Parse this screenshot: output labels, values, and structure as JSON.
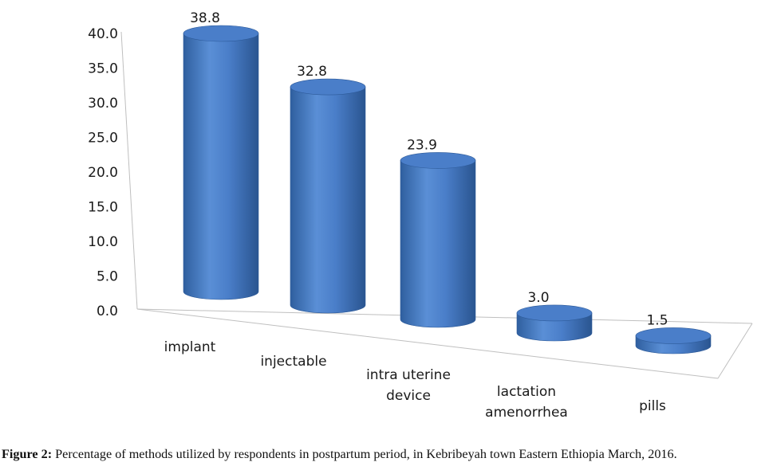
{
  "chart_data": {
    "type": "bar",
    "style": "3d-cylinder",
    "categories": [
      "implant",
      "injectable",
      "intra uterine device",
      "lactation amenorrhea",
      "pills"
    ],
    "category_lines": [
      [
        "implant"
      ],
      [
        "injectable"
      ],
      [
        "intra uterine",
        "device"
      ],
      [
        "lactation",
        "amenorrhea"
      ],
      [
        "pills"
      ]
    ],
    "values": [
      38.8,
      32.8,
      23.9,
      3.0,
      1.5
    ],
    "data_labels": [
      "38.8",
      "32.8",
      "23.9",
      "3.0",
      "1.5"
    ],
    "y_ticks": [
      "0.0",
      "5.0",
      "10.0",
      "15.0",
      "20.0",
      "25.0",
      "30.0",
      "35.0",
      "40.0"
    ],
    "ylim": [
      0,
      40
    ],
    "bar_color": "#4a7ec9",
    "bar_dark": "#2d5a99",
    "bar_light": "#7aa6e0",
    "grid": false,
    "legend": "none"
  },
  "caption": {
    "label": "Figure 2:",
    "text": " Percentage of methods utilized by respondents in postpartum period, in Kebribeyah town Eastern Ethiopia March, 2016."
  }
}
